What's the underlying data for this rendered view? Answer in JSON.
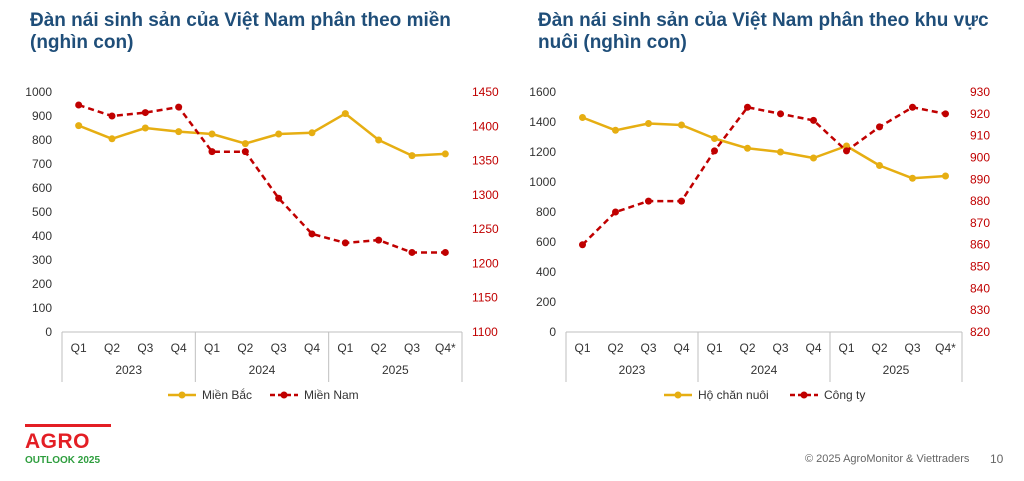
{
  "chart_data": [
    {
      "type": "line",
      "title": "Đàn nái sinh sản của Việt Nam phân theo miền (nghìn con)",
      "categories": [
        "Q1",
        "Q2",
        "Q3",
        "Q4",
        "Q1",
        "Q2",
        "Q3",
        "Q4",
        "Q1",
        "Q2",
        "Q3",
        "Q4*"
      ],
      "years": [
        "2023",
        "2024",
        "2025"
      ],
      "y_left": {
        "min": 0,
        "max": 1000,
        "step": 100,
        "ticks": [
          "0",
          "100",
          "200",
          "300",
          "400",
          "500",
          "600",
          "700",
          "800",
          "900",
          "1000"
        ]
      },
      "y_right": {
        "min": 1100,
        "max": 1450,
        "step": 50,
        "ticks": [
          "1100",
          "1150",
          "1200",
          "1250",
          "1300",
          "1350",
          "1400",
          "1450"
        ]
      },
      "series": [
        {
          "name": "Miền Bắc",
          "axis": "left",
          "style": "solid",
          "color": "#e6ae12",
          "values": [
            860,
            805,
            850,
            835,
            825,
            785,
            825,
            830,
            910,
            800,
            735,
            742
          ]
        },
        {
          "name": "Miền Nam",
          "axis": "right",
          "style": "dashed",
          "color": "#c00000",
          "values": [
            1431,
            1415,
            1420,
            1428,
            1363,
            1363,
            1295,
            1243,
            1230,
            1234,
            1216,
            1216
          ]
        }
      ]
    },
    {
      "type": "line",
      "title": "Đàn nái sinh sản của Việt Nam phân theo khu vực nuôi (nghìn con)",
      "categories": [
        "Q1",
        "Q2",
        "Q3",
        "Q4",
        "Q1",
        "Q2",
        "Q3",
        "Q4",
        "Q1",
        "Q2",
        "Q3",
        "Q4*"
      ],
      "years": [
        "2023",
        "2024",
        "2025"
      ],
      "y_left": {
        "min": 0,
        "max": 1600,
        "step": 200,
        "ticks": [
          "0",
          "200",
          "400",
          "600",
          "800",
          "1000",
          "1200",
          "1400",
          "1600"
        ]
      },
      "y_right": {
        "min": 820,
        "max": 930,
        "step": 10,
        "ticks": [
          "820",
          "830",
          "840",
          "850",
          "860",
          "870",
          "880",
          "890",
          "900",
          "910",
          "920",
          "930"
        ]
      },
      "series": [
        {
          "name": "Hộ chăn nuôi",
          "axis": "left",
          "style": "solid",
          "color": "#e6ae12",
          "values": [
            1430,
            1345,
            1390,
            1380,
            1290,
            1225,
            1200,
            1160,
            1240,
            1110,
            1025,
            1040
          ]
        },
        {
          "name": "Công ty",
          "axis": "right",
          "style": "dashed",
          "color": "#c00000",
          "values": [
            860,
            875,
            880,
            880,
            903,
            923,
            920,
            917,
            903,
            914,
            923,
            920
          ]
        }
      ]
    }
  ],
  "footer": {
    "logo_main": "AGRO",
    "logo_sub": "OUTLOOK 2025",
    "copyright": "© 2025 AgroMonitor & Viettraders",
    "page_number": "10"
  }
}
